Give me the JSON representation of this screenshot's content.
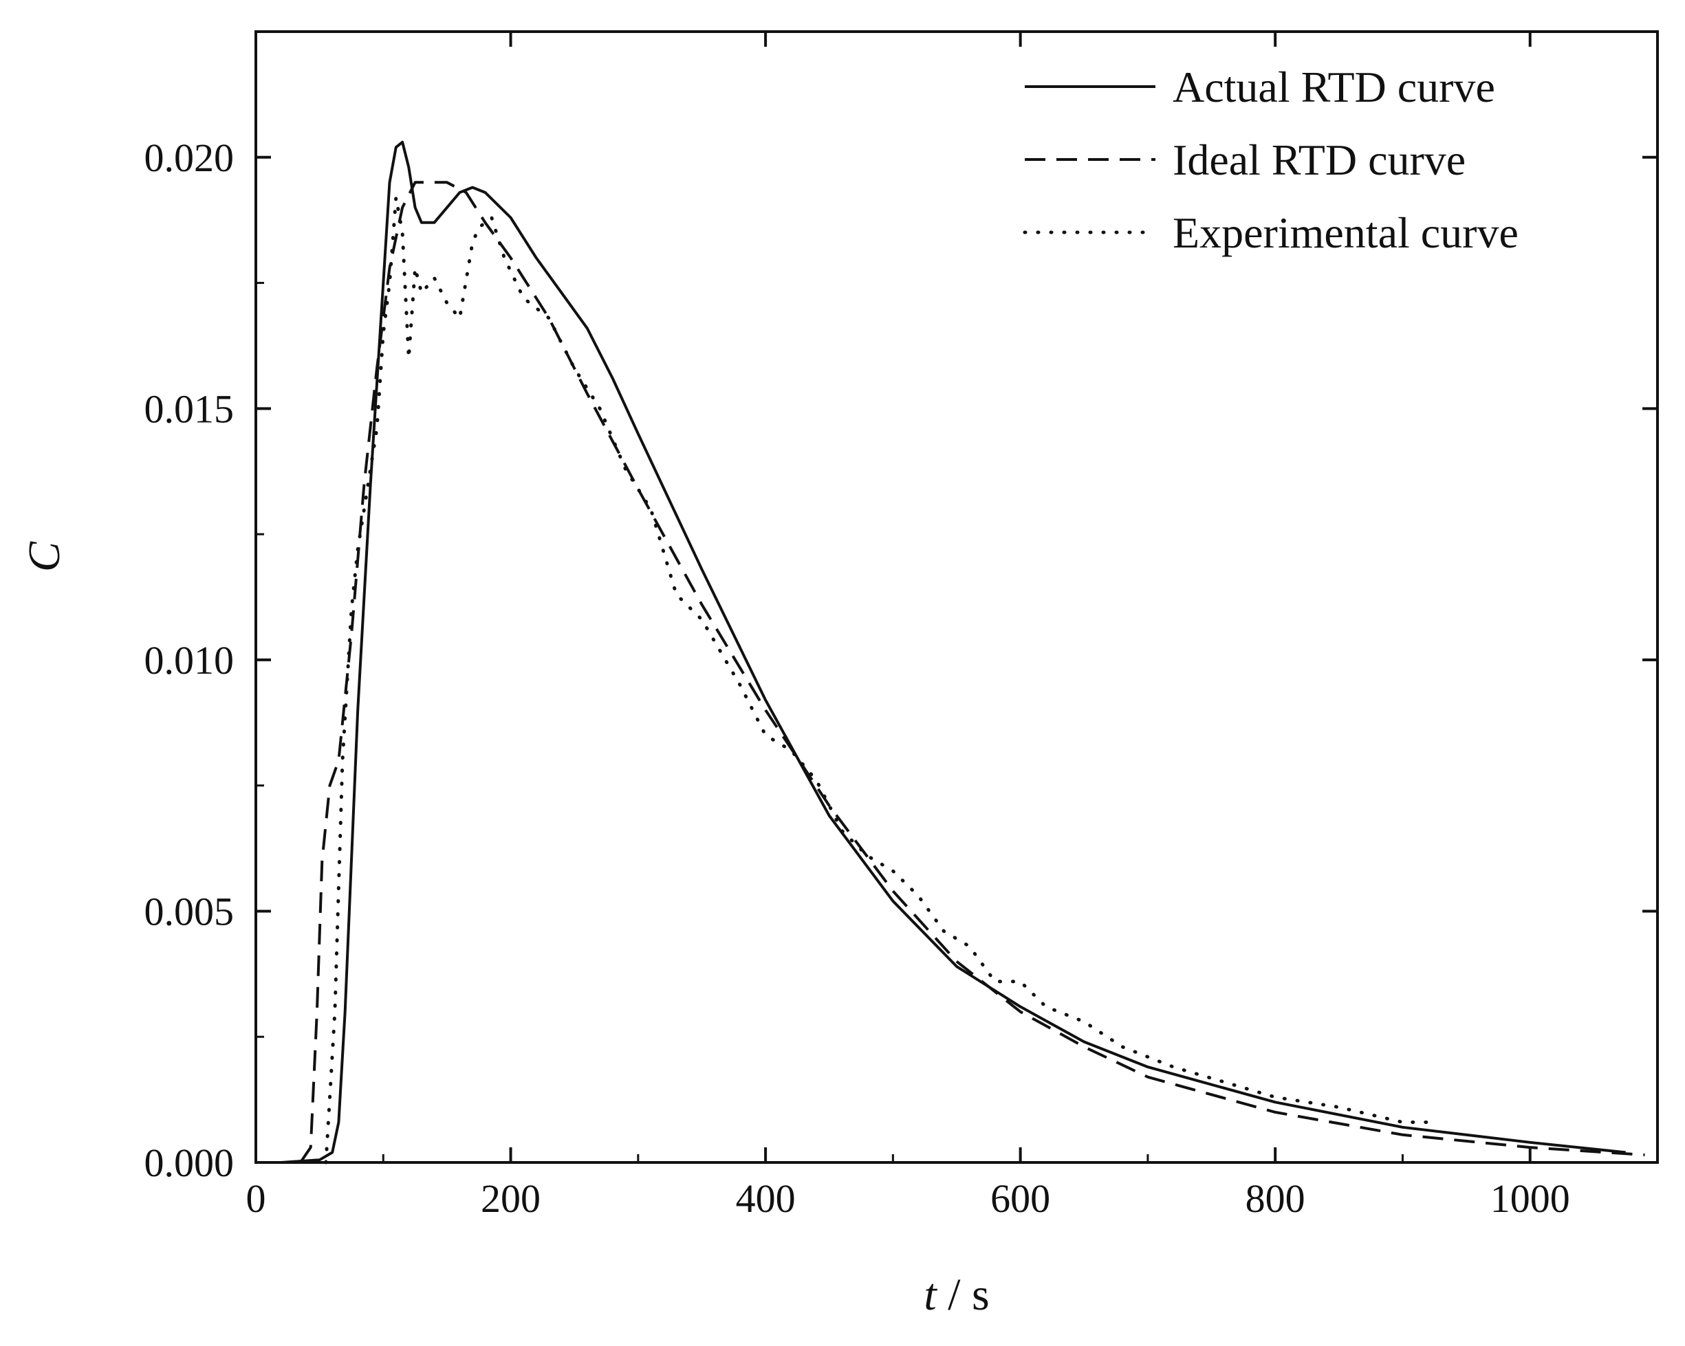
{
  "chart_data": {
    "type": "line",
    "title": "",
    "xlabel_var": "t",
    "xlabel_unit": " / s",
    "ylabel": "C",
    "xlim": [
      0,
      1100
    ],
    "ylim": [
      0,
      0.0225
    ],
    "x_ticks": [
      0,
      200,
      400,
      600,
      800,
      1000
    ],
    "x_tick_labels": [
      "0",
      "200",
      "400",
      "600",
      "800",
      "1000"
    ],
    "y_ticks": [
      0,
      0.005,
      0.01,
      0.015,
      0.02
    ],
    "y_tick_labels": [
      "0.000",
      "0.005",
      "0.010",
      "0.015",
      "0.020"
    ],
    "grid": false,
    "legend_position": "top-right",
    "series": [
      {
        "name": "Actual RTD curve",
        "style": "solid",
        "points": [
          [
            20,
            0
          ],
          [
            50,
            5e-05
          ],
          [
            60,
            0.0002
          ],
          [
            65,
            0.0008
          ],
          [
            70,
            0.003
          ],
          [
            80,
            0.009
          ],
          [
            90,
            0.0135
          ],
          [
            100,
            0.0175
          ],
          [
            105,
            0.0195
          ],
          [
            110,
            0.0202
          ],
          [
            115,
            0.0203
          ],
          [
            120,
            0.0198
          ],
          [
            125,
            0.019
          ],
          [
            130,
            0.0187
          ],
          [
            140,
            0.0187
          ],
          [
            150,
            0.019
          ],
          [
            160,
            0.0193
          ],
          [
            170,
            0.0194
          ],
          [
            180,
            0.0193
          ],
          [
            200,
            0.0188
          ],
          [
            220,
            0.018
          ],
          [
            240,
            0.0173
          ],
          [
            260,
            0.0166
          ],
          [
            280,
            0.0156
          ],
          [
            300,
            0.0145
          ],
          [
            350,
            0.0118
          ],
          [
            400,
            0.0092
          ],
          [
            450,
            0.0069
          ],
          [
            500,
            0.0052
          ],
          [
            550,
            0.0039
          ],
          [
            600,
            0.0031
          ],
          [
            650,
            0.0024
          ],
          [
            700,
            0.0019
          ],
          [
            800,
            0.0012
          ],
          [
            900,
            0.0007
          ],
          [
            1000,
            0.0004
          ],
          [
            1075,
            0.0002
          ]
        ]
      },
      {
        "name": "Ideal RTD curve",
        "style": "dashed",
        "points": [
          [
            35,
            0
          ],
          [
            43,
            0.0003
          ],
          [
            48,
            0.003
          ],
          [
            52,
            0.006
          ],
          [
            58,
            0.0075
          ],
          [
            65,
            0.008
          ],
          [
            75,
            0.0105
          ],
          [
            85,
            0.0135
          ],
          [
            95,
            0.0158
          ],
          [
            105,
            0.0178
          ],
          [
            115,
            0.019
          ],
          [
            125,
            0.0195
          ],
          [
            150,
            0.0195
          ],
          [
            165,
            0.0193
          ],
          [
            180,
            0.0187
          ],
          [
            200,
            0.018
          ],
          [
            230,
            0.0168
          ],
          [
            260,
            0.0153
          ],
          [
            300,
            0.0134
          ],
          [
            350,
            0.0111
          ],
          [
            400,
            0.009
          ],
          [
            450,
            0.0071
          ],
          [
            500,
            0.0054
          ],
          [
            550,
            0.004
          ],
          [
            600,
            0.003
          ],
          [
            650,
            0.0023
          ],
          [
            700,
            0.0017
          ],
          [
            800,
            0.001
          ],
          [
            900,
            0.00055
          ],
          [
            1000,
            0.0003
          ],
          [
            1090,
            0.00015
          ]
        ]
      },
      {
        "name": "Experimental curve",
        "style": "dotted",
        "points": [
          [
            55,
            0
          ],
          [
            62,
            0.003
          ],
          [
            68,
            0.008
          ],
          [
            75,
            0.011
          ],
          [
            80,
            0.0122
          ],
          [
            85,
            0.013
          ],
          [
            90,
            0.0138
          ],
          [
            95,
            0.0146
          ],
          [
            100,
            0.0165
          ],
          [
            105,
            0.0175
          ],
          [
            110,
            0.0192
          ],
          [
            115,
            0.0185
          ],
          [
            120,
            0.016
          ],
          [
            125,
            0.0178
          ],
          [
            130,
            0.0173
          ],
          [
            140,
            0.0176
          ],
          [
            150,
            0.0171
          ],
          [
            160,
            0.0168
          ],
          [
            170,
            0.0183
          ],
          [
            175,
            0.0186
          ],
          [
            185,
            0.0188
          ],
          [
            195,
            0.018
          ],
          [
            210,
            0.0172
          ],
          [
            230,
            0.0168
          ],
          [
            250,
            0.0158
          ],
          [
            270,
            0.015
          ],
          [
            290,
            0.0138
          ],
          [
            310,
            0.013
          ],
          [
            330,
            0.0113
          ],
          [
            350,
            0.0108
          ],
          [
            380,
            0.0095
          ],
          [
            400,
            0.0085
          ],
          [
            420,
            0.0082
          ],
          [
            440,
            0.0076
          ],
          [
            460,
            0.0066
          ],
          [
            480,
            0.0061
          ],
          [
            500,
            0.0058
          ],
          [
            520,
            0.0053
          ],
          [
            540,
            0.0046
          ],
          [
            560,
            0.0043
          ],
          [
            580,
            0.0036
          ],
          [
            600,
            0.0036
          ],
          [
            620,
            0.0031
          ],
          [
            650,
            0.0028
          ],
          [
            680,
            0.0023
          ],
          [
            720,
            0.0019
          ],
          [
            760,
            0.0016
          ],
          [
            800,
            0.0013
          ],
          [
            850,
            0.0011
          ],
          [
            900,
            0.0008
          ],
          [
            920,
            0.0008
          ]
        ]
      }
    ]
  }
}
